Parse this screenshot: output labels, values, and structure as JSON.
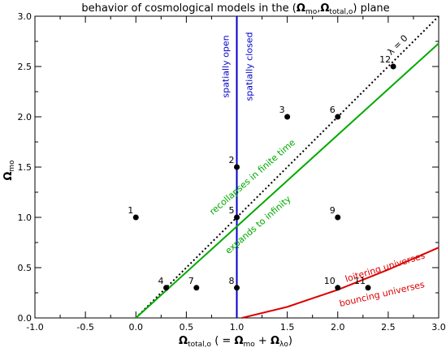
{
  "chart_data": {
    "type": "scatter",
    "title": {
      "prefix": "behavior of cosmological models in the (",
      "omega": "Ω",
      "sub1": "mo",
      "comma": ",",
      "sub2": "total,o",
      "suffix": ") plane"
    },
    "xlabel": {
      "omega": "Ω",
      "sub": "total,o",
      "mid": " ( = ",
      "omega_m": "Ω",
      "sub_m": "mo",
      "plus": " + ",
      "omega_l": "Ω",
      "sub_l": "λo",
      "close": ")"
    },
    "ylabel": {
      "omega": "Ω",
      "sub": "mo"
    },
    "xlim": [
      -1.0,
      3.0
    ],
    "ylim": [
      0.0,
      3.0
    ],
    "xticks": [
      -1.0,
      -0.5,
      0.0,
      0.5,
      1.0,
      1.5,
      2.0,
      2.5,
      3.0
    ],
    "xtick_labels": [
      "-1.0",
      "-0.5",
      "0.0",
      "0.5",
      "1.0",
      "1.5",
      "2.0",
      "2.5",
      "3.0"
    ],
    "yticks": [
      0.0,
      0.5,
      1.0,
      1.5,
      2.0,
      2.5,
      3.0
    ],
    "ytick_labels": [
      "0.0",
      "0.5",
      "1.0",
      "1.5",
      "2.0",
      "2.5",
      "3.0"
    ],
    "grid": false,
    "points": [
      {
        "label": "1",
        "x": 0.0,
        "y": 1.0
      },
      {
        "label": "2",
        "x": 1.0,
        "y": 1.5
      },
      {
        "label": "3",
        "x": 1.5,
        "y": 2.0
      },
      {
        "label": "4",
        "x": 0.3,
        "y": 0.3
      },
      {
        "label": "5",
        "x": 1.0,
        "y": 1.0
      },
      {
        "label": "6",
        "x": 2.0,
        "y": 2.0
      },
      {
        "label": "7",
        "x": 0.6,
        "y": 0.3
      },
      {
        "label": "8",
        "x": 1.0,
        "y": 0.3
      },
      {
        "label": "9",
        "x": 2.0,
        "y": 1.0
      },
      {
        "label": "10",
        "x": 2.0,
        "y": 0.3
      },
      {
        "label": "11",
        "x": 2.3,
        "y": 0.3
      },
      {
        "label": "12",
        "x": 2.55,
        "y": 2.5
      }
    ],
    "lines": {
      "vertical": {
        "x": 1.0,
        "color": "#0000cc",
        "left_label": "spatially open",
        "right_label": "spatially closed"
      },
      "lambda_zero": {
        "x": [
          0.0,
          3.0
        ],
        "y": [
          0.0,
          3.0
        ],
        "color": "#000000",
        "style": "dotted",
        "label": "λ = 0"
      },
      "green": {
        "x": [
          0.0,
          3.0
        ],
        "y": [
          0.0,
          2.73
        ],
        "color": "#00aa00",
        "above_label": "recollapses in finite time",
        "below_label": "expands to infinity"
      },
      "red": {
        "x": [
          1.05,
          1.5,
          2.0,
          2.5,
          3.0
        ],
        "y": [
          0.0,
          0.11,
          0.28,
          0.48,
          0.7
        ],
        "color": "#dd0000",
        "above_label": "loitering universes",
        "below_label": "bouncing universes"
      }
    }
  }
}
